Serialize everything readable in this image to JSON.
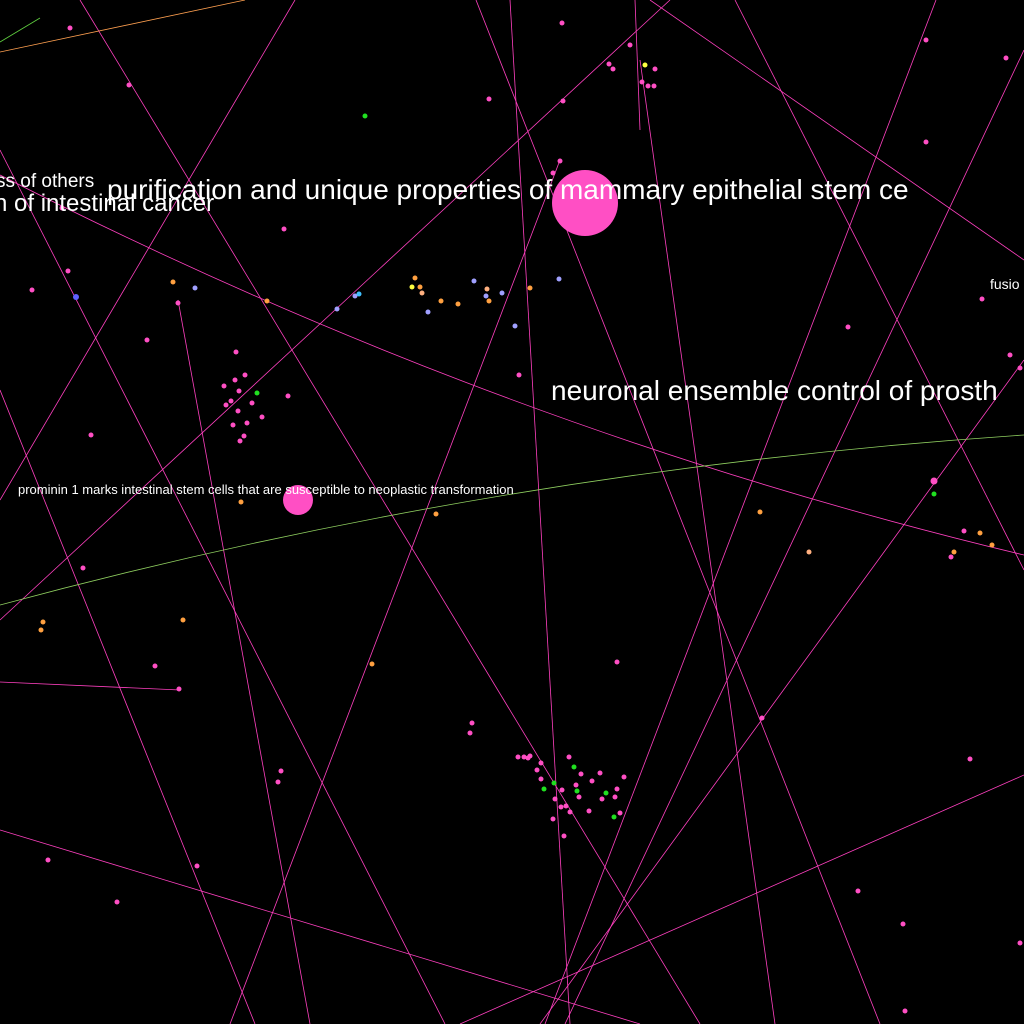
{
  "graph": {
    "background": "#000000",
    "palette": {
      "pink": "#ff4fc4",
      "orange": "#ffa040",
      "lavender": "#a0a0ff",
      "green": "#20e020",
      "yellow": "#ffff40",
      "cyan": "#40c0ff",
      "blue": "#6060ff",
      "peach": "#ffb080",
      "edge": "#ff40c0",
      "edge_green": "#90d060",
      "edge_orange": "#ffa050"
    },
    "labels": {
      "mammary": "purification and unique properties of mammary epithelial stem ce",
      "prosthetic": "neuronal ensemble control of prosth",
      "intestinal_cancer": "n of intestinal cancer",
      "others": "ss of others",
      "prominin": "prominin 1 marks intestinal stem cells that are susceptible to neoplastic transformation",
      "fusion": "fusio"
    }
  }
}
